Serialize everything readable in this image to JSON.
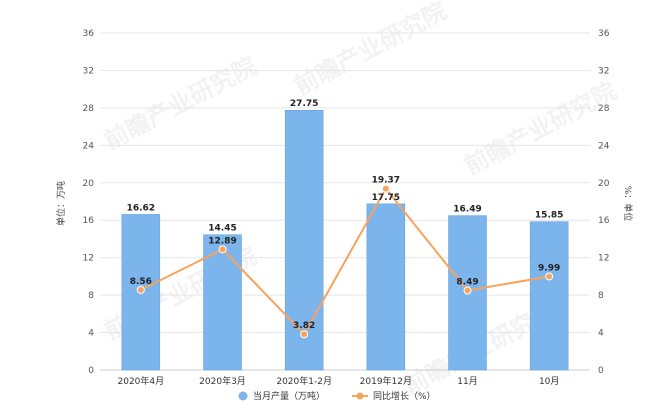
{
  "chart_data": {
    "type": "bar",
    "categories": [
      "2020年4月",
      "2020年3月",
      "2020年1-2月",
      "2019年12月",
      "11月",
      "10月"
    ],
    "series": [
      {
        "name": "当月产量（万吨）",
        "kind": "bar",
        "axis": "left",
        "values": [
          16.62,
          14.45,
          27.75,
          17.75,
          16.49,
          15.85
        ]
      },
      {
        "name": "同比增长（%）",
        "kind": "line",
        "axis": "right",
        "values": [
          8.56,
          12.89,
          3.82,
          19.37,
          8.49,
          9.99
        ]
      }
    ],
    "ylabel": "单位：万吨",
    "y2label": "%：单位",
    "ylim": [
      0,
      36
    ],
    "y2lim": [
      0,
      36
    ],
    "yticks": [
      0,
      4,
      8,
      12,
      16,
      20,
      24,
      28,
      32,
      36
    ],
    "y2ticks": [
      0,
      4,
      8,
      12,
      16,
      20,
      24,
      28,
      32,
      36
    ],
    "legend_position": "bottom-center",
    "grid": true,
    "colors": {
      "bar": "#7cb5ec",
      "bar_border": "#5b9bd5",
      "line": "#f7a35c",
      "grid": "#e6e6e6"
    },
    "watermark": "前瞻产业研究院"
  }
}
